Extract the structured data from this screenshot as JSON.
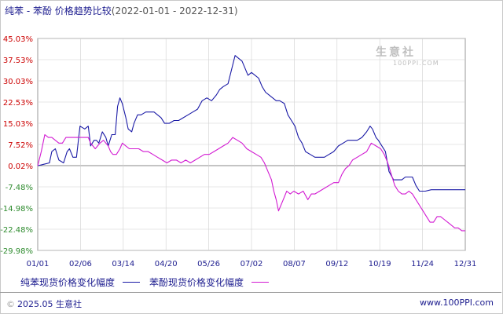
{
  "header": {
    "title": "纯苯 - 苯酚 价格趋势比较",
    "date_range": "(2022-01-01 - 2022-12-31)"
  },
  "watermark": {
    "name": "生意社",
    "url": "100PPI.COM"
  },
  "footer": {
    "copyright_mark": "©",
    "copyright": "2025.05 生意社",
    "site": "www.100PPI.com"
  },
  "colors": {
    "series1": "#1a1aa6",
    "series2": "#d21ad2",
    "grid": "#d0d0d0",
    "pos_tick": "#cc0000",
    "neg_tick": "#2e8b2e"
  },
  "chart_data": {
    "type": "line",
    "y_ticks": [
      "45.03%",
      "37.53%",
      "30.03%",
      "22.53%",
      "15.03%",
      "7.52%",
      "0.02%",
      "-7.48%",
      "-14.98%",
      "-22.48%",
      "-29.98%"
    ],
    "ylim": [
      -29.98,
      45.03
    ],
    "x_ticks": [
      "01/01",
      "02/06",
      "03/14",
      "04/20",
      "05/26",
      "07/02",
      "08/07",
      "09/12",
      "10/19",
      "11/24",
      "12/31"
    ],
    "xlim": [
      0,
      364
    ],
    "series": [
      {
        "name": "纯苯现货价格变化幅度",
        "color": "#1a1aa6",
        "points": [
          [
            0,
            0
          ],
          [
            5,
            0.5
          ],
          [
            10,
            1
          ],
          [
            12,
            5
          ],
          [
            15,
            6
          ],
          [
            18,
            2
          ],
          [
            22,
            1
          ],
          [
            25,
            5
          ],
          [
            27,
            6
          ],
          [
            30,
            3
          ],
          [
            33,
            3
          ],
          [
            36,
            14
          ],
          [
            40,
            13
          ],
          [
            43,
            14
          ],
          [
            45,
            7
          ],
          [
            48,
            9
          ],
          [
            50,
            9
          ],
          [
            52,
            8
          ],
          [
            55,
            12
          ],
          [
            58,
            10
          ],
          [
            60,
            7
          ],
          [
            63,
            11
          ],
          [
            66,
            11
          ],
          [
            68,
            21
          ],
          [
            70,
            24
          ],
          [
            72,
            22
          ],
          [
            75,
            17
          ],
          [
            77,
            13
          ],
          [
            80,
            12
          ],
          [
            82,
            15
          ],
          [
            85,
            18
          ],
          [
            88,
            18
          ],
          [
            92,
            19
          ],
          [
            96,
            19
          ],
          [
            99,
            19
          ],
          [
            102,
            18
          ],
          [
            105,
            17
          ],
          [
            108,
            15
          ],
          [
            112,
            15
          ],
          [
            116,
            16
          ],
          [
            120,
            16
          ],
          [
            124,
            17
          ],
          [
            128,
            18
          ],
          [
            132,
            19
          ],
          [
            136,
            20
          ],
          [
            140,
            23
          ],
          [
            144,
            24
          ],
          [
            148,
            23
          ],
          [
            152,
            25
          ],
          [
            155,
            27
          ],
          [
            158,
            28
          ],
          [
            162,
            29
          ],
          [
            165,
            34
          ],
          [
            168,
            39
          ],
          [
            171,
            38
          ],
          [
            174,
            37
          ],
          [
            176,
            35
          ],
          [
            179,
            32
          ],
          [
            182,
            33
          ],
          [
            185,
            32
          ],
          [
            188,
            31
          ],
          [
            191,
            28
          ],
          [
            194,
            26
          ],
          [
            197,
            25
          ],
          [
            200,
            24
          ],
          [
            203,
            23
          ],
          [
            206,
            23
          ],
          [
            210,
            22
          ],
          [
            213,
            18
          ],
          [
            216,
            16
          ],
          [
            219,
            14
          ],
          [
            222,
            10
          ],
          [
            225,
            8
          ],
          [
            228,
            5
          ],
          [
            232,
            4
          ],
          [
            236,
            3
          ],
          [
            240,
            3
          ],
          [
            244,
            3
          ],
          [
            248,
            4
          ],
          [
            252,
            5
          ],
          [
            256,
            7
          ],
          [
            260,
            8
          ],
          [
            264,
            9
          ],
          [
            268,
            9
          ],
          [
            272,
            9
          ],
          [
            276,
            10
          ],
          [
            280,
            12
          ],
          [
            283,
            14
          ],
          [
            285,
            13
          ],
          [
            288,
            10
          ],
          [
            290,
            9
          ],
          [
            293,
            7
          ],
          [
            296,
            5
          ],
          [
            299,
            -2
          ],
          [
            303,
            -5
          ],
          [
            306,
            -5
          ],
          [
            310,
            -5
          ],
          [
            313,
            -4
          ],
          [
            316,
            -4
          ],
          [
            319,
            -4
          ],
          [
            322,
            -7
          ],
          [
            325,
            -9
          ],
          [
            330,
            -9
          ],
          [
            335,
            -8.5
          ],
          [
            340,
            -8.5
          ],
          [
            345,
            -8.5
          ],
          [
            350,
            -8.5
          ],
          [
            355,
            -8.5
          ],
          [
            360,
            -8.5
          ],
          [
            364,
            -8.5
          ]
        ]
      },
      {
        "name": "苯酚现货价格变化幅度",
        "color": "#d21ad2",
        "points": [
          [
            0,
            0
          ],
          [
            3,
            5
          ],
          [
            6,
            11
          ],
          [
            9,
            10
          ],
          [
            12,
            10
          ],
          [
            15,
            9
          ],
          [
            18,
            8
          ],
          [
            21,
            8
          ],
          [
            24,
            10
          ],
          [
            27,
            10
          ],
          [
            30,
            10
          ],
          [
            33,
            10
          ],
          [
            36,
            10
          ],
          [
            40,
            10
          ],
          [
            43,
            10
          ],
          [
            45,
            8
          ],
          [
            47,
            7
          ],
          [
            49,
            6
          ],
          [
            51,
            7
          ],
          [
            53,
            8
          ],
          [
            56,
            9
          ],
          [
            58,
            8
          ],
          [
            60,
            7
          ],
          [
            62,
            5
          ],
          [
            64,
            4
          ],
          [
            67,
            4
          ],
          [
            70,
            6
          ],
          [
            72,
            8
          ],
          [
            75,
            7
          ],
          [
            78,
            6
          ],
          [
            82,
            6
          ],
          [
            86,
            6
          ],
          [
            90,
            5
          ],
          [
            94,
            5
          ],
          [
            98,
            4
          ],
          [
            102,
            3
          ],
          [
            106,
            2
          ],
          [
            110,
            1
          ],
          [
            114,
            2
          ],
          [
            118,
            2
          ],
          [
            122,
            1
          ],
          [
            126,
            2
          ],
          [
            130,
            1
          ],
          [
            134,
            2
          ],
          [
            138,
            3
          ],
          [
            142,
            4
          ],
          [
            146,
            4
          ],
          [
            150,
            5
          ],
          [
            154,
            6
          ],
          [
            158,
            7
          ],
          [
            162,
            8
          ],
          [
            166,
            10
          ],
          [
            170,
            9
          ],
          [
            174,
            8
          ],
          [
            178,
            6
          ],
          [
            182,
            5
          ],
          [
            186,
            4
          ],
          [
            190,
            3
          ],
          [
            193,
            1
          ],
          [
            196,
            -2
          ],
          [
            199,
            -5
          ],
          [
            201,
            -9
          ],
          [
            203,
            -12
          ],
          [
            205,
            -16
          ],
          [
            207,
            -14
          ],
          [
            209,
            -12
          ],
          [
            212,
            -9
          ],
          [
            215,
            -10
          ],
          [
            218,
            -9
          ],
          [
            222,
            -10
          ],
          [
            226,
            -9
          ],
          [
            230,
            -12
          ],
          [
            233,
            -10
          ],
          [
            236,
            -10
          ],
          [
            240,
            -9
          ],
          [
            244,
            -8
          ],
          [
            248,
            -7
          ],
          [
            252,
            -6
          ],
          [
            256,
            -6
          ],
          [
            259,
            -3
          ],
          [
            262,
            -1
          ],
          [
            265,
            0
          ],
          [
            268,
            2
          ],
          [
            272,
            3
          ],
          [
            276,
            4
          ],
          [
            280,
            5
          ],
          [
            284,
            8
          ],
          [
            288,
            7
          ],
          [
            292,
            6
          ],
          [
            295,
            4
          ],
          [
            298,
            1
          ],
          [
            301,
            -3
          ],
          [
            304,
            -7
          ],
          [
            307,
            -9
          ],
          [
            310,
            -10
          ],
          [
            313,
            -10
          ],
          [
            316,
            -9
          ],
          [
            319,
            -10
          ],
          [
            322,
            -12
          ],
          [
            325,
            -14
          ],
          [
            328,
            -16
          ],
          [
            331,
            -18
          ],
          [
            334,
            -20
          ],
          [
            337,
            -20
          ],
          [
            340,
            -18
          ],
          [
            343,
            -18
          ],
          [
            346,
            -19
          ],
          [
            349,
            -20
          ],
          [
            352,
            -21
          ],
          [
            355,
            -22
          ],
          [
            358,
            -22
          ],
          [
            361,
            -23
          ],
          [
            364,
            -23
          ]
        ]
      }
    ]
  }
}
